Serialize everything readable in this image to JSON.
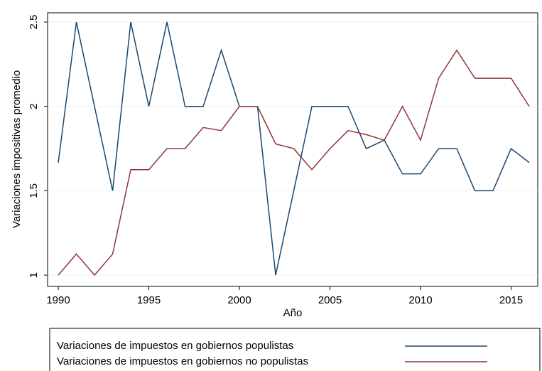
{
  "chart_data": {
    "type": "line",
    "x_label": "Año",
    "y_label": "Variaciones impositivas promedio",
    "x": [
      1990,
      1991,
      1992,
      1993,
      1994,
      1995,
      1996,
      1997,
      1998,
      1999,
      2000,
      2001,
      2002,
      2003,
      2004,
      2005,
      2006,
      2007,
      2008,
      2009,
      2010,
      2011,
      2012,
      2013,
      2014,
      2015,
      2016
    ],
    "series": [
      {
        "name": "Variaciones de impuestos en gobiernos populistas",
        "color": "#1a476f",
        "values": [
          1.667,
          2.5,
          2.0,
          1.5,
          2.5,
          2.0,
          2.5,
          2.0,
          2.0,
          2.333,
          2.0,
          2.0,
          1.0,
          1.5,
          2.0,
          2.0,
          2.0,
          1.75,
          1.8,
          1.6,
          1.6,
          1.75,
          1.75,
          1.5,
          1.5,
          1.75,
          1.667
        ]
      },
      {
        "name": "Variaciones de impuestos en gobiernos no populistas",
        "color": "#90353b",
        "values": [
          1.0,
          1.125,
          1.0,
          1.125,
          1.625,
          1.625,
          1.75,
          1.75,
          1.875,
          1.857,
          2.0,
          2.0,
          1.778,
          1.75,
          1.625,
          1.75,
          1.857,
          1.833,
          1.8,
          2.0,
          1.8,
          2.167,
          2.333,
          2.167,
          2.167,
          2.167,
          2.0
        ]
      }
    ],
    "xlim": [
      1989.41,
      2016.47
    ],
    "xticks": [
      1990,
      1995,
      2000,
      2005,
      2010,
      2015
    ],
    "ylim": [
      0.933,
      2.555
    ],
    "yticks": [
      1,
      1.5,
      2,
      2.5
    ],
    "grid": true,
    "legend": "bottom"
  }
}
